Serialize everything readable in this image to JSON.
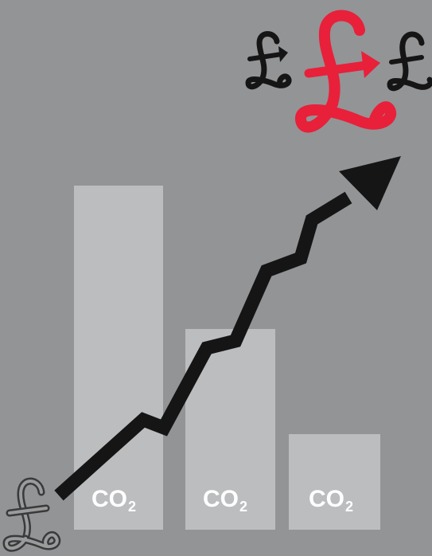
{
  "bars": [
    {
      "label_main": "CO",
      "label_sub": "2"
    },
    {
      "label_main": "CO",
      "label_sub": "2"
    },
    {
      "label_main": "CO",
      "label_sub": "2"
    }
  ],
  "icons": [
    "pound-icon",
    "rising-arrow-icon",
    "cycle-arrow-icon"
  ],
  "colors": {
    "background": "#939496",
    "bar": "#bcbdbf",
    "arrow": "#151515",
    "accent_pound": "#e8203a",
    "label": "#ffffff"
  }
}
